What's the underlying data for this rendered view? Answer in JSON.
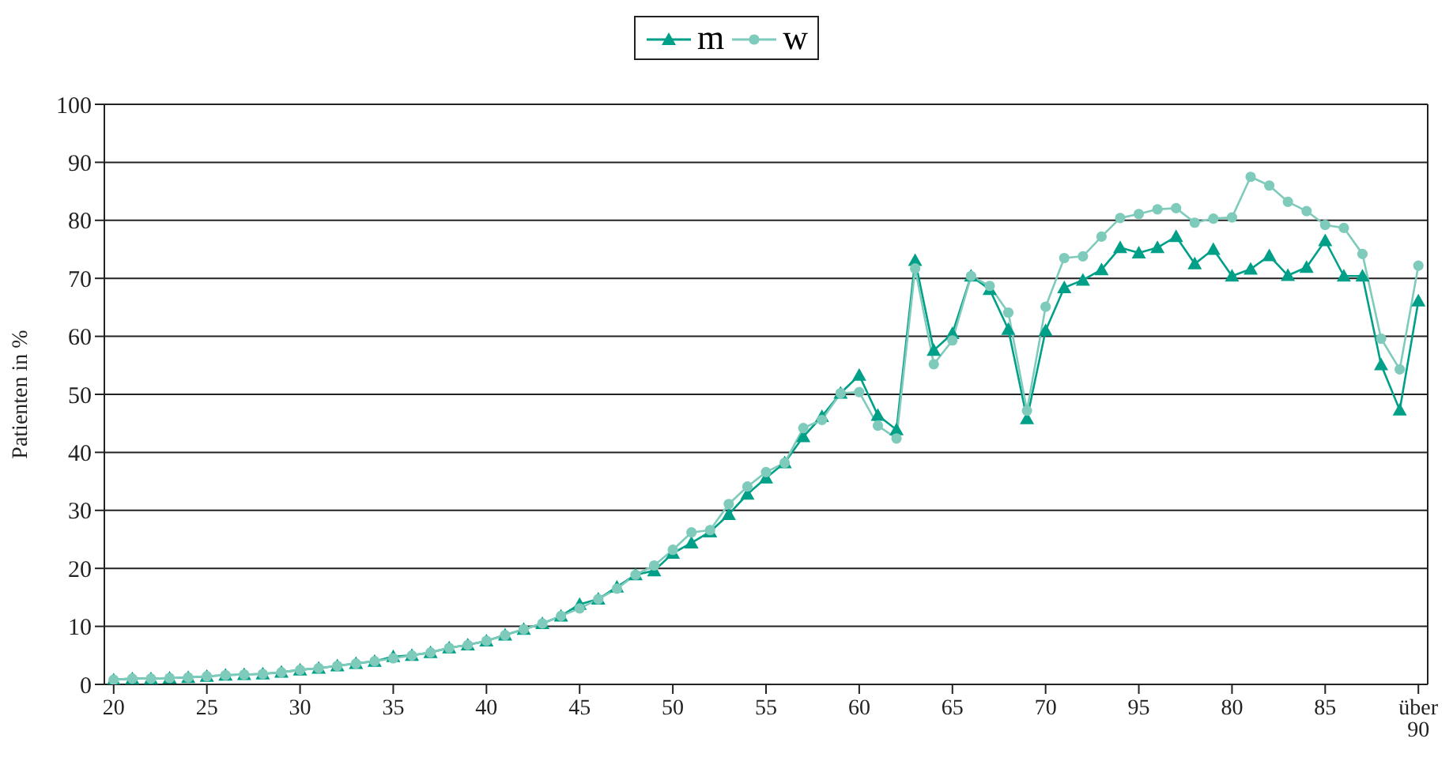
{
  "chart_data": {
    "type": "line",
    "ylabel": "Patienten in %",
    "categories": [
      "20",
      null,
      null,
      null,
      null,
      "25",
      null,
      null,
      null,
      null,
      "30",
      null,
      null,
      null,
      null,
      "35",
      null,
      null,
      null,
      null,
      "40",
      null,
      null,
      null,
      null,
      "45",
      null,
      null,
      null,
      null,
      "50",
      null,
      null,
      null,
      null,
      "55",
      null,
      null,
      null,
      null,
      "60",
      null,
      null,
      null,
      null,
      "65",
      null,
      null,
      null,
      null,
      "70",
      null,
      null,
      null,
      null,
      "95",
      null,
      null,
      null,
      null,
      "80",
      null,
      null,
      null,
      null,
      "85",
      null,
      null,
      null,
      null,
      "über 90"
    ],
    "series": [
      {
        "name": "m",
        "color": "#00a088",
        "marker": "triangle",
        "values": [
          0.8,
          1,
          1,
          1.1,
          1.2,
          1.4,
          1.6,
          1.7,
          1.8,
          2.1,
          2.5,
          2.8,
          3.2,
          3.6,
          4,
          4.8,
          5,
          5.5,
          6.3,
          6.8,
          7.5,
          8.5,
          9.5,
          10.5,
          11.8,
          13.8,
          14.7,
          16.8,
          18.9,
          19.6,
          22.6,
          24.4,
          26.3,
          29.3,
          32.8,
          35.6,
          38.2,
          42.7,
          46.2,
          50.2,
          53.3,
          46.4,
          43.9,
          73.1,
          57.6,
          60.5,
          70.4,
          68.1,
          61.2,
          45.8,
          61,
          68.4,
          69.7,
          71.5,
          75.3,
          74.4,
          75.3,
          77.2,
          72.5,
          75,
          70.4,
          71.6,
          73.9,
          70.5,
          71.9,
          76.5,
          70.4,
          70.4,
          55.1,
          47.3,
          66.1
        ]
      },
      {
        "name": "w",
        "color": "#7fcbbb",
        "marker": "circle",
        "values": [
          0.8,
          1,
          1,
          1.1,
          1.2,
          1.4,
          1.6,
          1.7,
          1.8,
          2.1,
          2.5,
          2.8,
          3.2,
          3.6,
          4,
          4.5,
          5,
          5.5,
          6.3,
          6.8,
          7.5,
          8.5,
          9.5,
          10.5,
          11.8,
          13.1,
          14.7,
          16.5,
          18.9,
          20.5,
          23.2,
          26.2,
          26.6,
          31.1,
          34.1,
          36.6,
          38.2,
          44.2,
          45.6,
          50.2,
          50.4,
          44.6,
          42.4,
          71.7,
          55.2,
          59.3,
          70.4,
          68.7,
          64.1,
          47.2,
          65.1,
          73.5,
          73.8,
          77.2,
          80.4,
          81.1,
          81.9,
          82.1,
          79.6,
          80.3,
          80.5,
          87.5,
          86,
          83.2,
          81.6,
          79.2,
          78.7,
          74.2,
          59.6,
          54.3,
          72.2
        ]
      }
    ],
    "ylim": [
      0,
      100
    ],
    "yticks": [
      0,
      10,
      20,
      30,
      40,
      50,
      60,
      70,
      80,
      90,
      100
    ],
    "grid": "y",
    "legend": "top",
    "line_style": "solid"
  }
}
